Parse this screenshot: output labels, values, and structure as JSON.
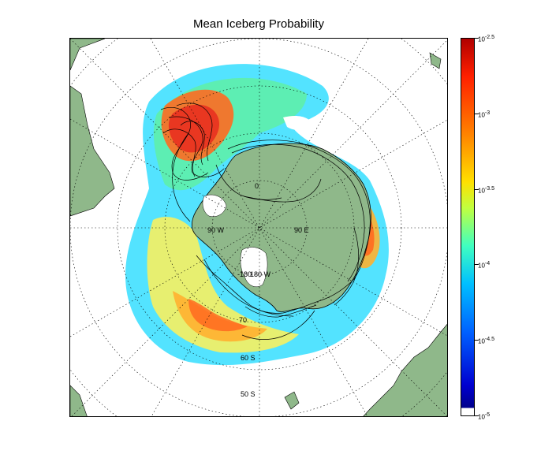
{
  "title": "Mean Iceberg Probability",
  "map": {
    "projection": "south-polar-stereographic",
    "land_color": "#8fb88a",
    "ice_shelf_color": "#ffffff",
    "grid": "dotted",
    "labels": {
      "lon_0": "0",
      "lon_90w": "90 W",
      "lon_90e": "90 E",
      "lon_180w": "180 W",
      "lon_180e": "-180",
      "lat_60s": "60 S",
      "lat_50s": "50 S",
      "lat_70s": "70"
    },
    "track_color": "#000000"
  },
  "colorbar": {
    "scale": "log10",
    "range": [
      -5,
      -2.5
    ],
    "colormap": "jet",
    "ticks": [
      {
        "value": -2.5,
        "base": "10",
        "exp": "-2.5"
      },
      {
        "value": -3,
        "base": "10",
        "exp": "-3"
      },
      {
        "value": -3.5,
        "base": "10",
        "exp": "-3.5"
      },
      {
        "value": -4,
        "base": "10",
        "exp": "-4"
      },
      {
        "value": -4.5,
        "base": "10",
        "exp": "-4.5"
      },
      {
        "value": -5,
        "base": "10",
        "exp": "-5"
      }
    ]
  }
}
